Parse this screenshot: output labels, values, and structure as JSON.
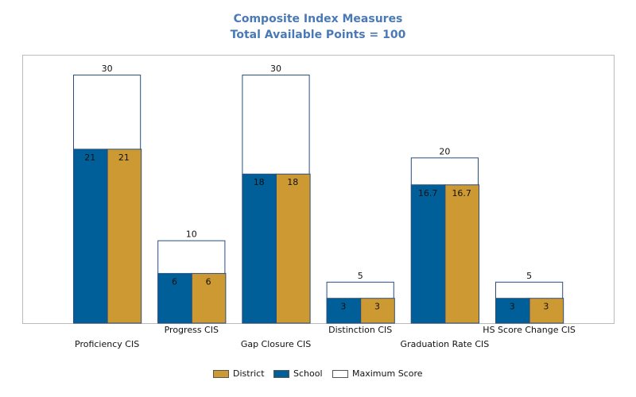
{
  "title_line1": "Composite Index Measures",
  "title_line2": "Total Available Points = 100",
  "colors": {
    "school": "#005f99",
    "district": "#cc9933",
    "maximum": "#ffffff",
    "maximum_border": "#2a4d7a",
    "frame": "#bbbbbb",
    "title": "#4a7ab5"
  },
  "chart_data": {
    "type": "bar",
    "categories": [
      "Proficiency CIS",
      "Progress CIS",
      "Gap Closure CIS",
      "Distinction CIS",
      "Graduation Rate CIS",
      "HS Score Change CIS"
    ],
    "ylim": [
      0,
      32.4
    ],
    "series": [
      {
        "name": "School",
        "values": [
          21,
          6,
          18,
          3,
          16.7,
          3
        ],
        "labels": [
          "21",
          "6",
          "18",
          "3",
          "16.7",
          "3"
        ]
      },
      {
        "name": "District",
        "values": [
          21,
          6,
          18,
          3,
          16.7,
          3
        ],
        "labels": [
          "21",
          "6",
          "18",
          "3",
          "16.7",
          "3"
        ]
      },
      {
        "name": "Maximum Score",
        "values": [
          30,
          10,
          30,
          5,
          20,
          5
        ],
        "labels": [
          "30",
          "10",
          "30",
          "5",
          "20",
          "5"
        ]
      }
    ],
    "legend": [
      "District",
      "School",
      "Maximum Score"
    ],
    "legend_position": "bottom-center",
    "grid": false
  }
}
